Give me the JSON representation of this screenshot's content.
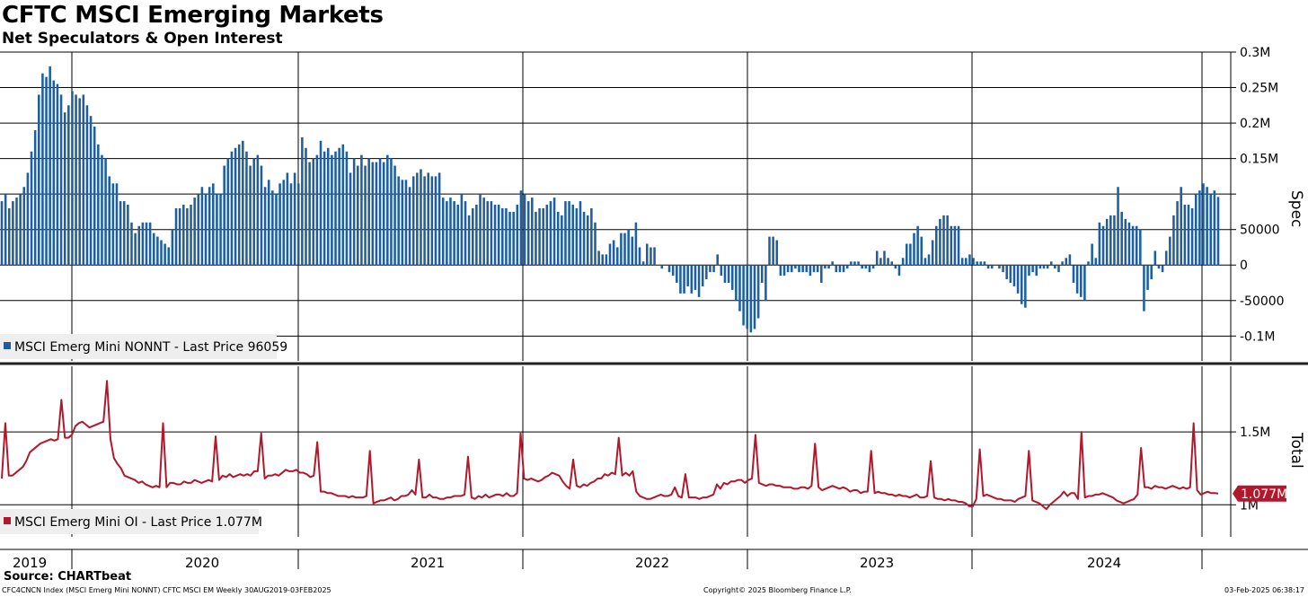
{
  "title": "CFTC MSCI Emerging Markets",
  "subtitle": "Net Speculators & Open Interest",
  "source": "Source: CHARTbeat",
  "footer": {
    "left": "CFC4CNCN Index (MSCI Emerg Mini NONNT) CFTC MSCI EM  Weekly 30AUG2019-03FEB2025",
    "center": "Copyright© 2025 Bloomberg Finance L.P.",
    "right": "03-Feb-2025 06:38:17"
  },
  "x_labels": [
    "2019",
    "2020",
    "2021",
    "2022",
    "2023",
    "2024"
  ],
  "colors": {
    "spec": "#1f5fa0",
    "oi": "#b3172b",
    "grid": "#000000"
  },
  "chart_data": [
    {
      "type": "bar",
      "name": "spec-panel",
      "axis_title": "Spec",
      "legend": "MSCI Emerg Mini NONNT - Last Price 96059",
      "last_value_label": "96059",
      "last_value": 96059,
      "ylim": [
        -0.135,
        0.3
      ],
      "y_ticks": [
        {
          "v": 0.3,
          "label": "0.3M"
        },
        {
          "v": 0.25,
          "label": "0.25M"
        },
        {
          "v": 0.2,
          "label": "0.2M"
        },
        {
          "v": 0.15,
          "label": "0.15M"
        },
        {
          "v": 0.1,
          "label": ""
        },
        {
          "v": 0.05,
          "label": "50000"
        },
        {
          "v": 0,
          "label": "0"
        },
        {
          "v": -0.05,
          "label": "-50000"
        },
        {
          "v": -0.1,
          "label": "-0.1M"
        }
      ],
      "unit": "M",
      "start": "2019-08-30",
      "frequency": "weekly",
      "values": [
        0.09,
        0.1,
        0.08,
        0.09,
        0.095,
        0.1,
        0.11,
        0.13,
        0.16,
        0.19,
        0.24,
        0.27,
        0.265,
        0.28,
        0.26,
        0.255,
        0.24,
        0.215,
        0.225,
        0.245,
        0.24,
        0.235,
        0.24,
        0.225,
        0.21,
        0.195,
        0.17,
        0.155,
        0.15,
        0.125,
        0.115,
        0.115,
        0.09,
        0.09,
        0.085,
        0.06,
        0.045,
        0.055,
        0.06,
        0.06,
        0.06,
        0.045,
        0.04,
        0.035,
        0.03,
        0.025,
        0.05,
        0.08,
        0.08,
        0.085,
        0.08,
        0.085,
        0.095,
        0.1,
        0.11,
        0.1,
        0.11,
        0.115,
        0.1,
        0.1,
        0.14,
        0.15,
        0.16,
        0.165,
        0.17,
        0.175,
        0.16,
        0.14,
        0.15,
        0.155,
        0.14,
        0.11,
        0.12,
        0.105,
        0.1,
        0.115,
        0.12,
        0.13,
        0.115,
        0.13,
        0.115,
        0.18,
        0.165,
        0.145,
        0.15,
        0.155,
        0.175,
        0.16,
        0.165,
        0.155,
        0.16,
        0.165,
        0.17,
        0.16,
        0.13,
        0.15,
        0.14,
        0.155,
        0.14,
        0.15,
        0.145,
        0.145,
        0.15,
        0.145,
        0.155,
        0.15,
        0.14,
        0.125,
        0.12,
        0.12,
        0.11,
        0.125,
        0.13,
        0.135,
        0.125,
        0.13,
        0.125,
        0.125,
        0.13,
        0.095,
        0.09,
        0.095,
        0.09,
        0.085,
        0.1,
        0.09,
        0.07,
        0.08,
        0.085,
        0.1,
        0.095,
        0.09,
        0.09,
        0.085,
        0.085,
        0.08,
        0.08,
        0.075,
        0.075,
        0.085,
        0.105,
        0.1,
        0.09,
        0.095,
        0.075,
        0.08,
        0.08,
        0.085,
        0.09,
        0.095,
        0.075,
        0.07,
        0.09,
        0.09,
        0.085,
        0.08,
        0.09,
        0.075,
        0.07,
        0.08,
        0.06,
        0.02,
        0.015,
        0.015,
        0.03,
        0.035,
        0.025,
        0.045,
        0.045,
        0.05,
        0.04,
        0.06,
        0.025,
        0.005,
        0.03,
        0.025,
        0.025,
        0,
        -0.005,
        0,
        -0.01,
        -0.015,
        -0.025,
        -0.04,
        -0.04,
        -0.03,
        -0.04,
        -0.035,
        -0.045,
        -0.03,
        -0.02,
        -0.01,
        -0.01,
        0.015,
        -0.015,
        -0.025,
        -0.025,
        -0.035,
        -0.05,
        -0.065,
        -0.085,
        -0.09,
        -0.095,
        -0.09,
        -0.075,
        -0.025,
        -0.05,
        0.04,
        0.04,
        0.035,
        -0.015,
        -0.015,
        -0.01,
        -0.01,
        -0.005,
        -0.01,
        -0.01,
        -0.01,
        -0.015,
        -0.01,
        -0.01,
        -0.025,
        -0.005,
        -0.005,
        0.005,
        -0.01,
        -0.01,
        -0.01,
        -0.005,
        0.005,
        0.005,
        0.005,
        -0.005,
        -0.005,
        -0.01,
        -0.005,
        0.02,
        0.01,
        0.02,
        0.01,
        0.005,
        -0.005,
        -0.015,
        0.01,
        0.03,
        0.03,
        0.045,
        0.055,
        0.04,
        0.01,
        0.015,
        0.035,
        0.055,
        0.065,
        0.07,
        0.07,
        0.055,
        0.055,
        0.055,
        0.01,
        0.01,
        0.015,
        0.01,
        0.005,
        0.005,
        0.005,
        -0.005,
        -0.005,
        0,
        -0.005,
        -0.01,
        -0.02,
        -0.025,
        -0.03,
        -0.04,
        -0.055,
        -0.06,
        -0.015,
        -0.01,
        -0.015,
        -0.005,
        -0.005,
        -0.005,
        0.005,
        -0.005,
        -0.01,
        0.005,
        0.01,
        0.015,
        -0.025,
        -0.04,
        -0.045,
        -0.05,
        0.005,
        0.03,
        0.01,
        0.06,
        0.055,
        0.065,
        0.07,
        0.07,
        0.11,
        0.075,
        0.065,
        0.06,
        0.055,
        0.055,
        0.05,
        -0.065,
        -0.035,
        -0.02,
        0.02,
        -0.005,
        -0.01,
        0.02,
        0.04,
        0.07,
        0.09,
        0.11,
        0.085,
        0.085,
        0.08,
        0.1,
        0.105,
        0.115,
        0.11,
        0.1,
        0.105,
        0.096
      ]
    },
    {
      "type": "line",
      "name": "oi-panel",
      "axis_title": "Total",
      "legend": "MSCI Emerg Mini OI - Last Price 1.077M",
      "last_value_label": "1.077M",
      "last_value": 1.077,
      "ylim": [
        0.78,
        1.95
      ],
      "y_ticks": [
        {
          "v": 1.5,
          "label": "1.5M"
        },
        {
          "v": 1.0,
          "label": "1M"
        }
      ],
      "unit": "M",
      "start": "2019-08-30",
      "frequency": "weekly",
      "values": [
        1.18,
        1.56,
        1.2,
        1.2,
        1.22,
        1.24,
        1.26,
        1.3,
        1.36,
        1.38,
        1.4,
        1.42,
        1.43,
        1.44,
        1.45,
        1.44,
        1.45,
        1.72,
        1.46,
        1.46,
        1.48,
        1.54,
        1.56,
        1.57,
        1.55,
        1.53,
        1.54,
        1.55,
        1.56,
        1.57,
        1.85,
        1.45,
        1.32,
        1.28,
        1.25,
        1.2,
        1.19,
        1.18,
        1.17,
        1.15,
        1.16,
        1.14,
        1.13,
        1.12,
        1.13,
        1.12,
        1.56,
        1.12,
        1.15,
        1.15,
        1.14,
        1.14,
        1.16,
        1.15,
        1.15,
        1.17,
        1.16,
        1.15,
        1.16,
        1.17,
        1.16,
        1.47,
        1.17,
        1.2,
        1.19,
        1.21,
        1.19,
        1.2,
        1.21,
        1.2,
        1.21,
        1.2,
        1.23,
        1.23,
        1.49,
        1.18,
        1.2,
        1.2,
        1.21,
        1.2,
        1.22,
        1.24,
        1.23,
        1.23,
        1.24,
        1.22,
        1.22,
        1.21,
        1.19,
        1.2,
        1.43,
        1.09,
        1.09,
        1.08,
        1.08,
        1.07,
        1.06,
        1.06,
        1.06,
        1.05,
        1.06,
        1.05,
        1.05,
        1.05,
        1.06,
        1.37,
        1.01,
        1.02,
        1.03,
        1.03,
        1.04,
        1.05,
        1.03,
        1.04,
        1.06,
        1.06,
        1.07,
        1.1,
        1.07,
        1.31,
        1.05,
        1.05,
        1.07,
        1.05,
        1.05,
        1.04,
        1.04,
        1.05,
        1.05,
        1.06,
        1.06,
        1.06,
        1.07,
        1.33,
        1.05,
        1.04,
        1.06,
        1.05,
        1.07,
        1.05,
        1.06,
        1.07,
        1.07,
        1.06,
        1.08,
        1.06,
        1.06,
        1.08,
        1.49,
        1.18,
        1.17,
        1.18,
        1.17,
        1.16,
        1.17,
        1.19,
        1.2,
        1.22,
        1.21,
        1.2,
        1.16,
        1.13,
        1.11,
        1.31,
        1.13,
        1.12,
        1.14,
        1.13,
        1.15,
        1.16,
        1.18,
        1.18,
        1.21,
        1.2,
        1.22,
        1.21,
        1.46,
        1.2,
        1.22,
        1.2,
        1.23,
        1.09,
        1.06,
        1.05,
        1.04,
        1.04,
        1.05,
        1.06,
        1.07,
        1.06,
        1.06,
        1.07,
        1.12,
        1.06,
        1.05,
        1.21,
        1.05,
        1.05,
        1.05,
        1.04,
        1.05,
        1.05,
        1.06,
        1.07,
        1.14,
        1.11,
        1.15,
        1.14,
        1.16,
        1.16,
        1.17,
        1.17,
        1.15,
        1.17,
        1.18,
        1.48,
        1.15,
        1.14,
        1.13,
        1.14,
        1.14,
        1.13,
        1.13,
        1.12,
        1.12,
        1.12,
        1.11,
        1.11,
        1.12,
        1.12,
        1.11,
        1.13,
        1.42,
        1.12,
        1.1,
        1.11,
        1.12,
        1.13,
        1.12,
        1.11,
        1.12,
        1.11,
        1.09,
        1.1,
        1.1,
        1.08,
        1.09,
        1.09,
        1.37,
        1.08,
        1.09,
        1.08,
        1.08,
        1.07,
        1.07,
        1.06,
        1.07,
        1.06,
        1.06,
        1.05,
        1.06,
        1.07,
        1.05,
        1.05,
        1.06,
        1.3,
        1.05,
        1.04,
        1.04,
        1.03,
        1.04,
        1.03,
        1.03,
        1.02,
        1.02,
        1.01,
        0.99,
        0.99,
        1.04,
        1.38,
        1.06,
        1.07,
        1.06,
        1.05,
        1.04,
        1.04,
        1.03,
        1.03,
        1.03,
        1.02,
        1.04,
        1.05,
        1.06,
        1.37,
        1.03,
        1.02,
        1.01,
        0.99,
        0.97,
        1,
        1.02,
        1.04,
        1.06,
        1.09,
        1.06,
        1.08,
        1.08,
        1.04,
        1.5,
        1.05,
        1.06,
        1.06,
        1.07,
        1.07,
        1.08,
        1.07,
        1.06,
        1.05,
        1.03,
        1.02,
        1.01,
        1.02,
        1.03,
        1.04,
        1.07,
        1.39,
        1.12,
        1.12,
        1.11,
        1.13,
        1.12,
        1.12,
        1.11,
        1.12,
        1.13,
        1.12,
        1.11,
        1.12,
        1.11,
        1.12,
        1.56,
        1.1,
        1.07,
        1.08,
        1.09,
        1.08,
        1.08,
        1.077
      ]
    }
  ]
}
